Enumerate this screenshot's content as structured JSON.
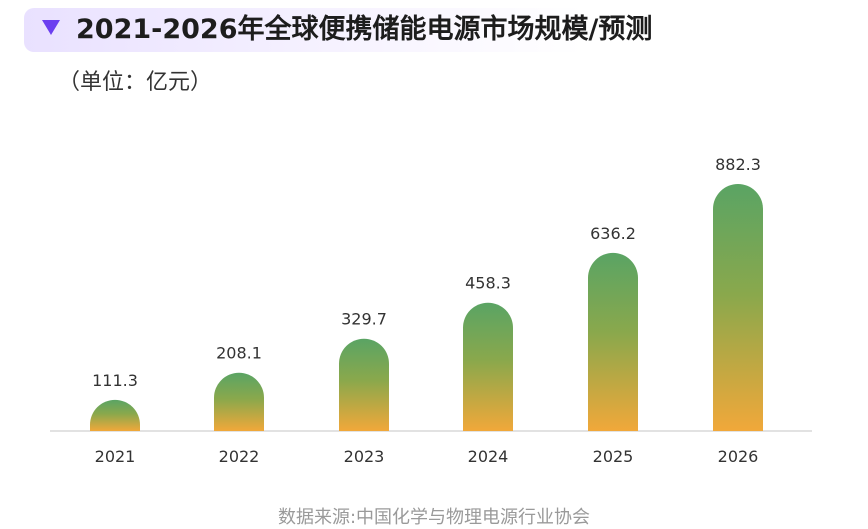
{
  "header": {
    "title": "2021-2026年全球便携储能电源市场规模/预测",
    "unit": "（单位：亿元）"
  },
  "footer": {
    "source": "数据来源:中国化学与物理电源行业协会"
  },
  "colors": {
    "accent": "#6b3ef0",
    "bar_top": "#5aa464",
    "bar_bottom": "#f1a83a",
    "axis": "#d9d9d9",
    "label": "#333333"
  },
  "chart_data": {
    "type": "bar",
    "categories": [
      "2021",
      "2022",
      "2023",
      "2024",
      "2025",
      "2026"
    ],
    "values": [
      111.3,
      208.1,
      329.7,
      458.3,
      636.2,
      882.3
    ],
    "value_labels": [
      "111.3",
      "208.1",
      "329.7",
      "458.3",
      "636.2",
      "882.3"
    ],
    "title": "2021-2026年全球便携储能电源市场规模/预测",
    "ylabel": "（单位：亿元）",
    "ylim": [
      0,
      882.3
    ],
    "grid": false,
    "legend": "none"
  }
}
